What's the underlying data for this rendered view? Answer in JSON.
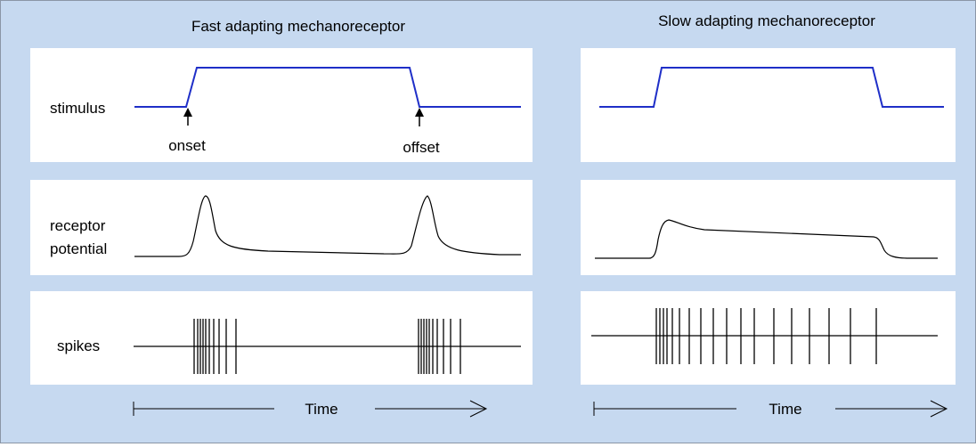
{
  "panels": [
    {
      "title": "Fast adapting mechanoreceptor",
      "rows": {
        "stimulus_label": "stimulus",
        "receptor_label_line1": "receptor",
        "receptor_label_line2": "potential",
        "spikes_label": "spikes"
      },
      "annotations": {
        "onset": "onset",
        "offset": "offset"
      },
      "time_label": "Time"
    },
    {
      "title": "Slow adapting mechanoreceptor",
      "time_label": "Time"
    }
  ],
  "colors": {
    "background": "#c6d9f0",
    "stimulus_line": "#1f2fc8",
    "trace": "#000000"
  }
}
